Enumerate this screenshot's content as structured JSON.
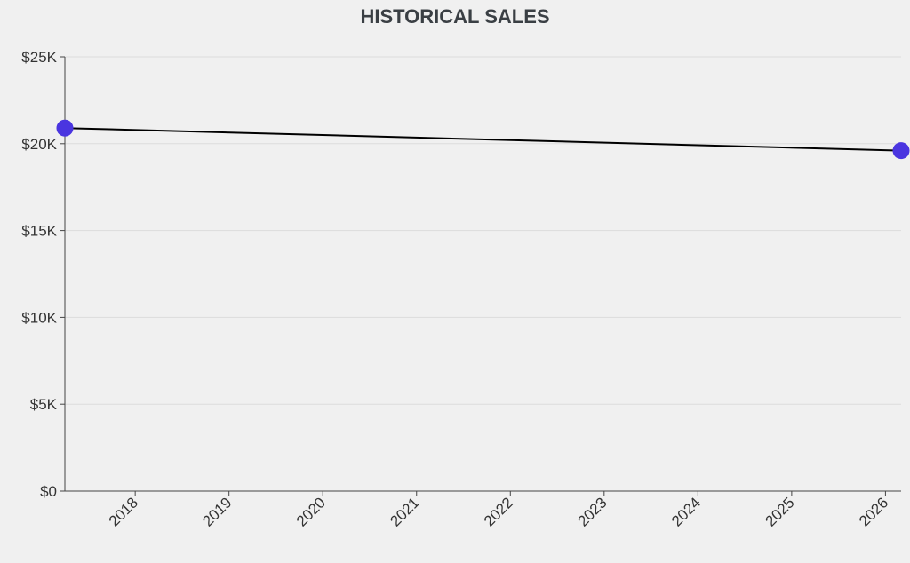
{
  "colors": {
    "background": "#f0f0f0",
    "line": "#000000",
    "marker": "#4a35e0",
    "title": "#3a3f44"
  },
  "chart_data": {
    "type": "line",
    "title": "HISTORICAL SALES",
    "xlabel": "",
    "ylabel": "",
    "x_ticks": [
      "2018",
      "2019",
      "2020",
      "2021",
      "2022",
      "2023",
      "2024",
      "2025",
      "2026"
    ],
    "y_ticks": [
      "$0",
      "$5K",
      "$10K",
      "$15K",
      "$20K",
      "$25K"
    ],
    "y_tick_values": [
      0,
      5000,
      10000,
      15000,
      20000,
      25000
    ],
    "ylim": [
      0,
      25000
    ],
    "xlim": [
      "2017-04",
      "2026-03"
    ],
    "grid": true,
    "series": [
      {
        "x": [
          "2017-04",
          "2026-03"
        ],
        "values": [
          20900,
          19600
        ]
      }
    ]
  }
}
